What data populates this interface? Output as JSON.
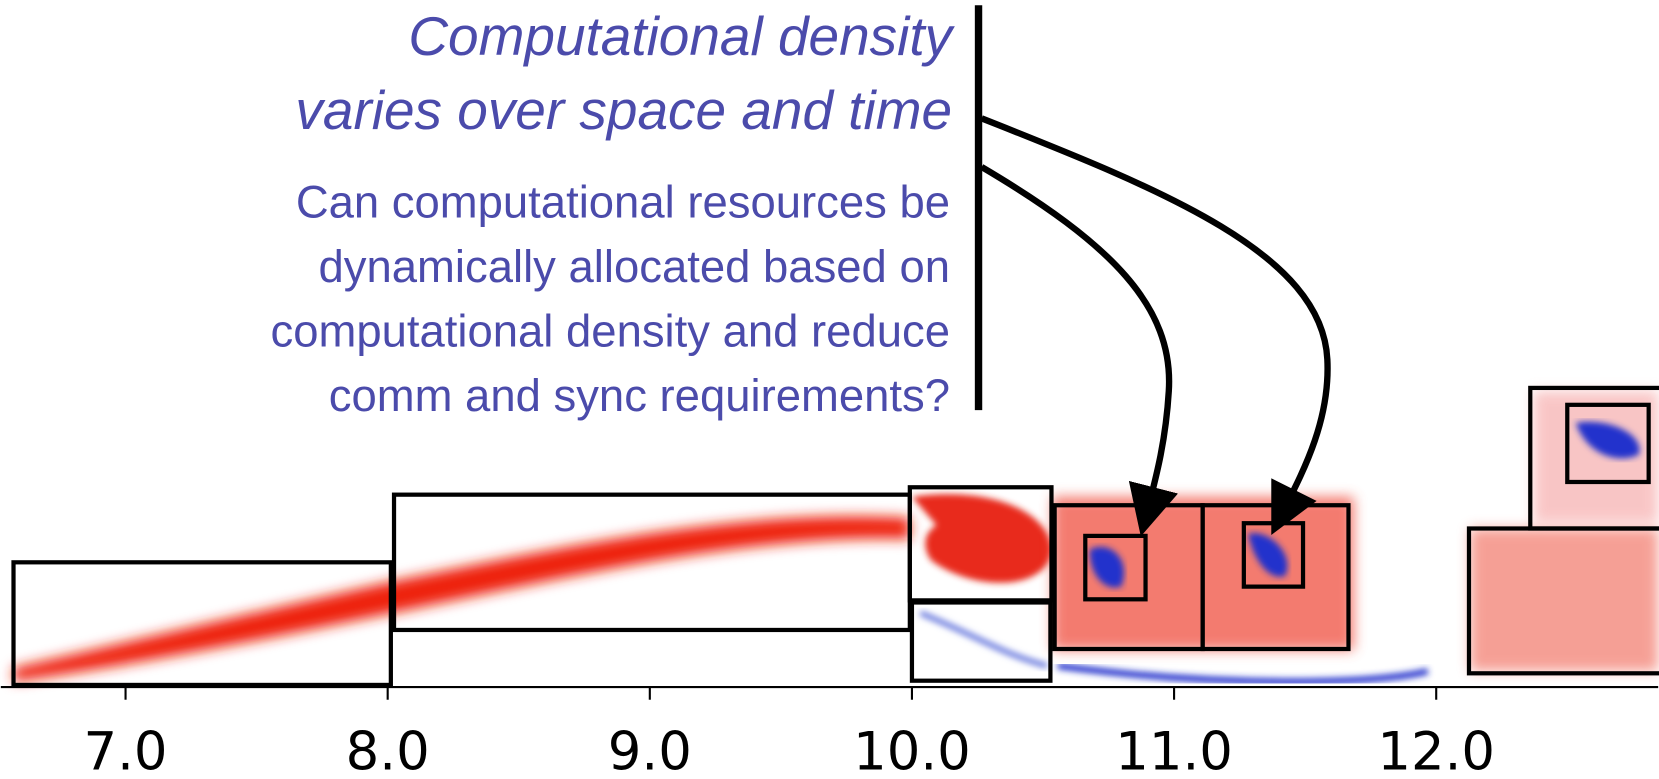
{
  "title_lines": [
    "Computational density",
    "varies over space and time"
  ],
  "question_lines": [
    "Can computational resources be",
    "dynamically allocated based on",
    "computational density and reduce",
    "comm and sync requirements?"
  ],
  "axis": {
    "tick_labels": [
      "7.0",
      "8.0",
      "9.0",
      "10.0",
      "11.0",
      "12.0"
    ]
  }
}
